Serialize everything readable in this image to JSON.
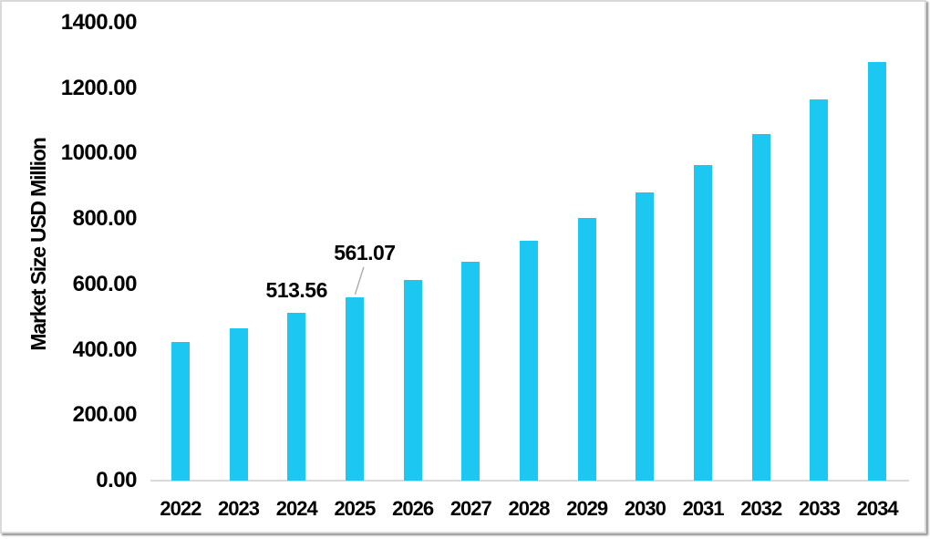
{
  "chart_data": {
    "type": "bar",
    "title": "",
    "xlabel": "",
    "ylabel": "Market Size USD Million",
    "categories": [
      "2022",
      "2023",
      "2024",
      "2025",
      "2026",
      "2027",
      "2028",
      "2029",
      "2030",
      "2031",
      "2032",
      "2033",
      "2034"
    ],
    "values": [
      425,
      466,
      513.56,
      561.07,
      614,
      670,
      733,
      803,
      882,
      965,
      1060,
      1166,
      1280
    ],
    "ylim": [
      0,
      1400
    ],
    "ytick_step": 200,
    "ytick_labels": [
      "0.00",
      "200.00",
      "400.00",
      "600.00",
      "800.00",
      "1000.00",
      "1200.00",
      "1400.00"
    ],
    "grid": false,
    "legend": "none",
    "bar_color": "#1cc7f2",
    "axis_line_color": "#d9d9d9",
    "leader_line_color": "#a6a6a6",
    "text_color": "#000000",
    "data_labels": [
      {
        "category": "2024",
        "text": "513.56",
        "leader": false
      },
      {
        "category": "2025",
        "text": "561.07",
        "leader": true
      }
    ]
  }
}
